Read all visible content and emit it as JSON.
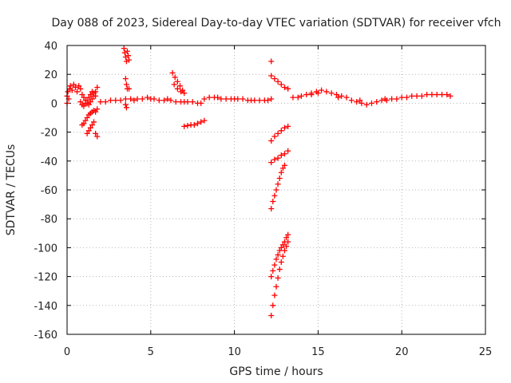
{
  "chart_data": {
    "type": "scatter",
    "title": "Day 088 of 2023, Sidereal Day-to-day VTEC variation (SDTVAR) for receiver vfch",
    "xlabel": "GPS time / hours",
    "ylabel": "SDTVAR / TECUs",
    "xlim": [
      0,
      25
    ],
    "ylim": [
      -160,
      40
    ],
    "xticks": [
      0,
      5,
      10,
      15,
      20,
      25
    ],
    "yticks": [
      -160,
      -140,
      -120,
      -100,
      -80,
      -60,
      -40,
      -20,
      0,
      20,
      40
    ],
    "grid": true,
    "marker": "+",
    "color": "#ff0000",
    "series": [
      {
        "name": "early-cluster",
        "points": [
          [
            0.0,
            5
          ],
          [
            0.0,
            0
          ],
          [
            0.05,
            8
          ],
          [
            0.1,
            3
          ],
          [
            0.15,
            10
          ],
          [
            0.2,
            12
          ],
          [
            0.3,
            9
          ],
          [
            0.4,
            13
          ],
          [
            0.5,
            11
          ],
          [
            0.6,
            8
          ],
          [
            0.7,
            12
          ],
          [
            0.8,
            10
          ],
          [
            0.9,
            6
          ],
          [
            1.0,
            4
          ],
          [
            1.1,
            2
          ],
          [
            1.2,
            0
          ],
          [
            1.3,
            -1
          ],
          [
            1.4,
            1
          ],
          [
            1.5,
            3
          ],
          [
            1.6,
            5
          ],
          [
            1.7,
            8
          ],
          [
            1.8,
            11
          ],
          [
            0.8,
            1
          ],
          [
            0.9,
            -1
          ],
          [
            1.0,
            -2
          ],
          [
            1.1,
            0
          ],
          [
            1.2,
            2
          ],
          [
            1.3,
            4
          ],
          [
            1.4,
            6
          ],
          [
            1.5,
            8
          ],
          [
            1.6,
            7
          ],
          [
            1.7,
            5
          ]
        ]
      },
      {
        "name": "early-negative",
        "points": [
          [
            0.9,
            -15
          ],
          [
            1.0,
            -14
          ],
          [
            1.1,
            -12
          ],
          [
            1.2,
            -10
          ],
          [
            1.3,
            -8
          ],
          [
            1.4,
            -7
          ],
          [
            1.5,
            -6
          ],
          [
            1.6,
            -5
          ],
          [
            1.2,
            -21
          ],
          [
            1.3,
            -19
          ],
          [
            1.4,
            -17
          ],
          [
            1.5,
            -15
          ],
          [
            1.6,
            -13
          ],
          [
            1.7,
            -21
          ],
          [
            1.8,
            -23
          ],
          [
            1.7,
            -6
          ],
          [
            1.8,
            -4
          ]
        ]
      },
      {
        "name": "band-2-12h",
        "points": [
          [
            2.0,
            1
          ],
          [
            2.3,
            1
          ],
          [
            2.6,
            2
          ],
          [
            2.9,
            2
          ],
          [
            3.2,
            2
          ],
          [
            3.5,
            3
          ],
          [
            3.8,
            3
          ],
          [
            4.0,
            2
          ],
          [
            4.2,
            3
          ],
          [
            4.5,
            3
          ],
          [
            4.8,
            4
          ],
          [
            5.0,
            3
          ],
          [
            5.2,
            3
          ],
          [
            5.5,
            2
          ],
          [
            5.8,
            2
          ],
          [
            6.0,
            3
          ],
          [
            6.2,
            2
          ],
          [
            6.5,
            1
          ],
          [
            6.8,
            1
          ],
          [
            7.0,
            1
          ],
          [
            7.2,
            1
          ],
          [
            7.5,
            1
          ],
          [
            7.8,
            0
          ],
          [
            8.0,
            0
          ],
          [
            8.2,
            3
          ],
          [
            8.5,
            4
          ],
          [
            8.8,
            4
          ],
          [
            9.0,
            4
          ],
          [
            9.2,
            3
          ],
          [
            9.5,
            3
          ],
          [
            9.8,
            3
          ],
          [
            10.0,
            3
          ],
          [
            10.2,
            3
          ],
          [
            10.5,
            3
          ],
          [
            10.8,
            2
          ],
          [
            11.0,
            2
          ],
          [
            11.2,
            2
          ],
          [
            11.5,
            2
          ],
          [
            11.8,
            2
          ],
          [
            12.0,
            2
          ],
          [
            12.2,
            3
          ]
        ]
      },
      {
        "name": "spike-3.5h",
        "points": [
          [
            3.4,
            38
          ],
          [
            3.45,
            35
          ],
          [
            3.5,
            32
          ],
          [
            3.55,
            29
          ],
          [
            3.6,
            36
          ],
          [
            3.65,
            33
          ],
          [
            3.7,
            30
          ],
          [
            3.5,
            17
          ],
          [
            3.55,
            13
          ],
          [
            3.6,
            10
          ],
          [
            3.7,
            10
          ],
          [
            3.5,
            -1
          ],
          [
            3.55,
            -3
          ]
        ]
      },
      {
        "name": "arc-6.3h",
        "points": [
          [
            6.3,
            21
          ],
          [
            6.45,
            18
          ],
          [
            6.6,
            15
          ],
          [
            6.75,
            12
          ],
          [
            6.9,
            9
          ],
          [
            6.4,
            13
          ],
          [
            6.6,
            10
          ],
          [
            6.8,
            8
          ],
          [
            7.0,
            7
          ]
        ]
      },
      {
        "name": "segment-7h",
        "points": [
          [
            7.0,
            -16
          ],
          [
            7.2,
            -15.5
          ],
          [
            7.4,
            -15
          ],
          [
            7.6,
            -15
          ],
          [
            7.8,
            -14
          ],
          [
            8.0,
            -13
          ],
          [
            8.2,
            -12
          ]
        ]
      },
      {
        "name": "spike-12.2h",
        "points": [
          [
            12.2,
            29
          ],
          [
            12.2,
            19
          ],
          [
            12.4,
            17
          ],
          [
            12.6,
            15
          ],
          [
            12.8,
            13
          ],
          [
            13.0,
            11
          ],
          [
            13.2,
            10
          ]
        ]
      },
      {
        "name": "drop-upper",
        "points": [
          [
            12.2,
            -26
          ],
          [
            12.4,
            -23
          ],
          [
            12.6,
            -21
          ],
          [
            12.8,
            -19
          ],
          [
            13.0,
            -17
          ],
          [
            13.2,
            -16
          ]
        ]
      },
      {
        "name": "drop-mid",
        "points": [
          [
            12.2,
            -41
          ],
          [
            12.4,
            -39
          ],
          [
            12.6,
            -38
          ],
          [
            12.8,
            -36
          ],
          [
            13.0,
            -35
          ],
          [
            13.2,
            -33
          ]
        ]
      },
      {
        "name": "drop-lower",
        "points": [
          [
            12.2,
            -73
          ],
          [
            12.3,
            -68
          ],
          [
            12.4,
            -64
          ],
          [
            12.5,
            -60
          ],
          [
            12.6,
            -56
          ],
          [
            12.7,
            -52
          ],
          [
            12.8,
            -48
          ],
          [
            12.9,
            -45
          ],
          [
            13.0,
            -43
          ]
        ]
      },
      {
        "name": "drop-deep",
        "points": [
          [
            12.2,
            -120
          ],
          [
            12.3,
            -116
          ],
          [
            12.4,
            -112
          ],
          [
            12.5,
            -108
          ],
          [
            12.6,
            -105
          ],
          [
            12.7,
            -102
          ],
          [
            12.8,
            -100
          ],
          [
            12.9,
            -98
          ],
          [
            13.0,
            -96
          ],
          [
            13.1,
            -93
          ],
          [
            13.2,
            -91
          ]
        ]
      },
      {
        "name": "drop-deepest",
        "points": [
          [
            12.2,
            -147
          ],
          [
            12.3,
            -140
          ],
          [
            12.4,
            -133
          ],
          [
            12.5,
            -127
          ],
          [
            12.6,
            -121
          ],
          [
            12.7,
            -115
          ],
          [
            12.8,
            -110
          ],
          [
            12.9,
            -106
          ],
          [
            13.0,
            -102
          ],
          [
            13.1,
            -99
          ],
          [
            13.2,
            -96
          ]
        ]
      },
      {
        "name": "afternoon-band",
        "points": [
          [
            13.5,
            4
          ],
          [
            13.8,
            4
          ],
          [
            14.0,
            5
          ],
          [
            14.3,
            6
          ],
          [
            14.6,
            7
          ],
          [
            14.9,
            8
          ],
          [
            15.2,
            9
          ],
          [
            15.5,
            8
          ],
          [
            15.8,
            7
          ],
          [
            16.1,
            6
          ],
          [
            16.4,
            5
          ],
          [
            16.7,
            4
          ],
          [
            17.0,
            2
          ],
          [
            17.3,
            1
          ],
          [
            17.6,
            0
          ],
          [
            17.9,
            -1
          ],
          [
            18.2,
            0
          ],
          [
            18.5,
            1
          ],
          [
            18.8,
            2
          ],
          [
            19.1,
            2
          ],
          [
            19.4,
            3
          ],
          [
            19.7,
            3
          ],
          [
            20.0,
            4
          ],
          [
            20.3,
            4
          ],
          [
            20.6,
            5
          ],
          [
            20.9,
            5
          ],
          [
            21.2,
            5
          ],
          [
            21.5,
            6
          ],
          [
            21.8,
            6
          ],
          [
            22.1,
            6
          ],
          [
            22.4,
            6
          ],
          [
            22.7,
            6
          ],
          [
            22.9,
            5
          ],
          [
            14.6,
            6
          ],
          [
            15.0,
            7
          ],
          [
            16.2,
            4
          ],
          [
            17.5,
            2
          ],
          [
            19.0,
            3
          ]
        ]
      }
    ]
  }
}
